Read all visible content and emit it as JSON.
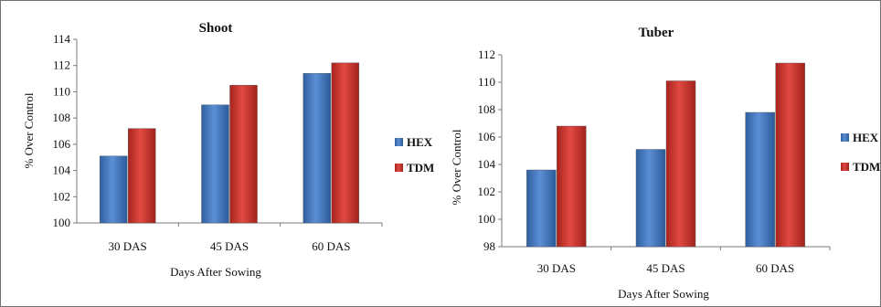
{
  "chart_data": [
    {
      "type": "bar",
      "title": "Shoot",
      "xlabel": "Days After Sowing",
      "ylabel": "% Over Control",
      "categories": [
        "30 DAS",
        "45 DAS",
        "60 DAS"
      ],
      "ylim": [
        100,
        114
      ],
      "yticks": [
        100,
        102,
        104,
        106,
        108,
        110,
        112,
        114
      ],
      "grid": false,
      "legend_position": "right",
      "series": [
        {
          "name": "HEX",
          "color": "#4a7cc3",
          "values": [
            105.1,
            109.0,
            111.4
          ]
        },
        {
          "name": "TDM",
          "color": "#d23a33",
          "values": [
            107.2,
            110.5,
            112.2
          ]
        }
      ]
    },
    {
      "type": "bar",
      "title": "Tuber",
      "xlabel": "Days After Sowing",
      "ylabel": "% Over Control",
      "categories": [
        "30 DAS",
        "45 DAS",
        "60 DAS"
      ],
      "ylim": [
        98,
        112
      ],
      "yticks": [
        98,
        100,
        102,
        104,
        106,
        108,
        110,
        112
      ],
      "grid": false,
      "legend_position": "right",
      "series": [
        {
          "name": "HEX",
          "color": "#4a7cc3",
          "values": [
            103.6,
            105.1,
            107.8
          ]
        },
        {
          "name": "TDM",
          "color": "#d23a33",
          "values": [
            106.8,
            110.1,
            111.4
          ]
        }
      ]
    }
  ]
}
